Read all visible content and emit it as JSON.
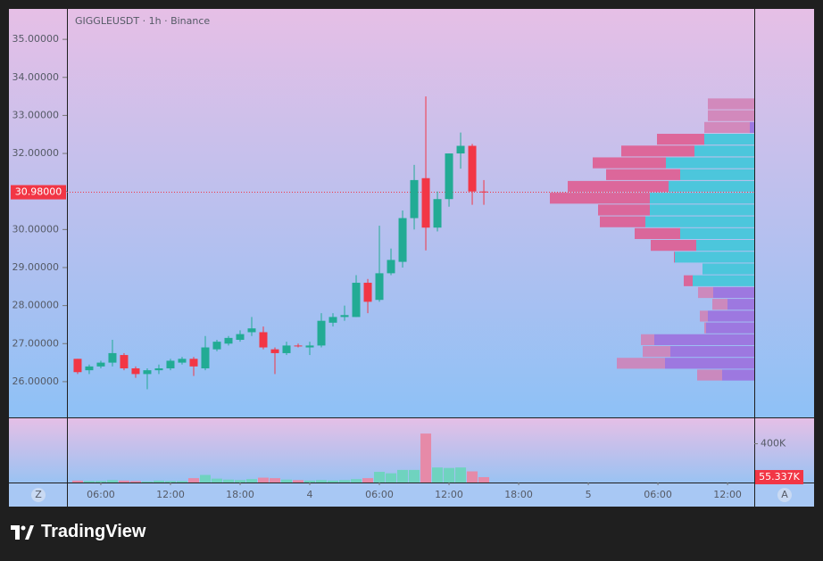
{
  "header": {
    "symbol": "GIGGLEUSDT · 1h · Binance"
  },
  "chart_data": {
    "type": "candlestick",
    "x": [
      4,
      5,
      6,
      7,
      8,
      9,
      10,
      11,
      12,
      13,
      14,
      15,
      16,
      17,
      18,
      19,
      20,
      21,
      22,
      23,
      24,
      25,
      26,
      27,
      28,
      29,
      30,
      31,
      32,
      33,
      34,
      35,
      36,
      37,
      38,
      39
    ],
    "open": [
      26.6,
      26.3,
      26.4,
      26.5,
      26.7,
      26.35,
      26.2,
      26.3,
      26.35,
      26.5,
      26.6,
      26.35,
      26.85,
      27.0,
      27.1,
      27.3,
      27.3,
      26.85,
      26.75,
      26.95,
      26.9,
      26.95,
      27.55,
      27.7,
      27.7,
      28.6,
      28.15,
      28.85,
      29.15,
      30.3,
      31.35,
      30.05,
      30.8,
      32.0,
      32.2,
      31.0
    ],
    "high": [
      26.6,
      26.45,
      26.55,
      27.1,
      26.75,
      26.4,
      26.35,
      26.45,
      26.6,
      26.65,
      26.65,
      27.2,
      27.1,
      27.2,
      27.35,
      27.7,
      27.45,
      26.9,
      27.05,
      27.0,
      27.05,
      27.8,
      27.8,
      28.0,
      28.8,
      28.7,
      30.1,
      29.5,
      30.5,
      31.7,
      33.5,
      31.0,
      32.0,
      32.55,
      32.25,
      31.3
    ],
    "low": [
      26.2,
      26.2,
      26.35,
      26.4,
      26.3,
      26.1,
      25.8,
      26.2,
      26.3,
      26.45,
      26.15,
      26.3,
      26.8,
      26.95,
      27.05,
      27.2,
      26.85,
      26.2,
      26.7,
      26.9,
      26.7,
      26.9,
      27.45,
      27.6,
      27.7,
      27.8,
      28.1,
      28.8,
      29.0,
      30.0,
      29.45,
      29.95,
      30.6,
      31.6,
      30.65,
      30.65
    ],
    "close": [
      26.25,
      26.4,
      26.5,
      26.75,
      26.35,
      26.2,
      26.3,
      26.35,
      26.55,
      26.6,
      26.4,
      26.9,
      27.05,
      27.15,
      27.25,
      27.4,
      26.9,
      26.75,
      26.95,
      26.93,
      26.95,
      27.6,
      27.7,
      27.75,
      28.6,
      28.1,
      28.85,
      29.2,
      30.3,
      31.3,
      30.05,
      30.8,
      32.0,
      32.2,
      31.0,
      30.98
    ],
    "volume": [
      20,
      15,
      15,
      25,
      20,
      15,
      10,
      20,
      15,
      15,
      45,
      78,
      40,
      30,
      25,
      35,
      50,
      45,
      30,
      25,
      20,
      25,
      20,
      25,
      35,
      45,
      110,
      95,
      130,
      130,
      505,
      155,
      150,
      155,
      115,
      55.337
    ],
    "up_color": "#22ab94",
    "down_color": "#f23645",
    "volume_up_color": "#6fd3bf",
    "volume_down_color": "#e68aa8",
    "xlim": [
      3.08,
      62.3
    ],
    "xticks": [
      {
        "value": 6,
        "label": "06:00"
      },
      {
        "value": 12,
        "label": "12:00"
      },
      {
        "value": 18,
        "label": "18:00"
      },
      {
        "value": 24,
        "label": "4"
      },
      {
        "value": 30,
        "label": "06:00"
      },
      {
        "value": 36,
        "label": "12:00"
      },
      {
        "value": 42,
        "label": "18:00"
      },
      {
        "value": 48,
        "label": "5"
      },
      {
        "value": 54,
        "label": "06:00"
      },
      {
        "value": 60,
        "label": "12:00"
      }
    ],
    "ylim": [
      25.06,
      35.8
    ],
    "yticks": [
      {
        "value": 26,
        "label": "26.00000"
      },
      {
        "value": 27,
        "label": "27.00000"
      },
      {
        "value": 28,
        "label": "28.00000"
      },
      {
        "value": 29,
        "label": "29.00000"
      },
      {
        "value": 30,
        "label": "30.00000"
      },
      {
        "value": 31,
        "label": "31.00000"
      },
      {
        "value": 32,
        "label": "32.00000"
      },
      {
        "value": 33,
        "label": "33.00000"
      },
      {
        "value": 34,
        "label": "34.00000"
      },
      {
        "value": 35,
        "label": "35.00000"
      }
    ],
    "volume_lim": [
      0,
      635
    ],
    "volume_ticks": [
      {
        "value": 400,
        "label": "400K"
      }
    ],
    "last_price": {
      "value": 30.98,
      "label": "30.98000"
    },
    "last_volume": {
      "value": 55.337,
      "label": "55.337K"
    },
    "profile": {
      "bins": [
        26.03,
        26.34,
        26.65,
        26.96,
        27.27,
        27.58,
        27.89,
        28.2,
        28.51,
        28.82,
        29.13,
        29.44,
        29.75,
        30.06,
        30.37,
        30.68,
        30.99,
        31.3,
        31.61,
        31.92,
        32.23,
        32.54,
        32.85,
        33.16,
        33.47
      ],
      "up": [
        36,
        100,
        94,
        112,
        54,
        52,
        30,
        46,
        69,
        58,
        89,
        65,
        83,
        122,
        117,
        117,
        96,
        83,
        99,
        67,
        56,
        5,
        0,
        0
      ],
      "down": [
        28,
        54,
        31,
        15,
        2,
        9,
        17,
        17,
        10,
        0,
        1,
        51,
        51,
        51,
        58,
        112,
        113,
        83,
        82,
        82,
        53,
        51,
        52,
        52
      ],
      "value_area": [
        28.51,
        32.54
      ],
      "value_area_colors": [
        "#4cc6dc",
        "#e0578c"
      ],
      "outside_colors": [
        "#9d78e0",
        "#d27fb4"
      ]
    },
    "axis_buttons": [
      "Z",
      "A"
    ]
  },
  "footer": {
    "brand": "TradingView"
  }
}
